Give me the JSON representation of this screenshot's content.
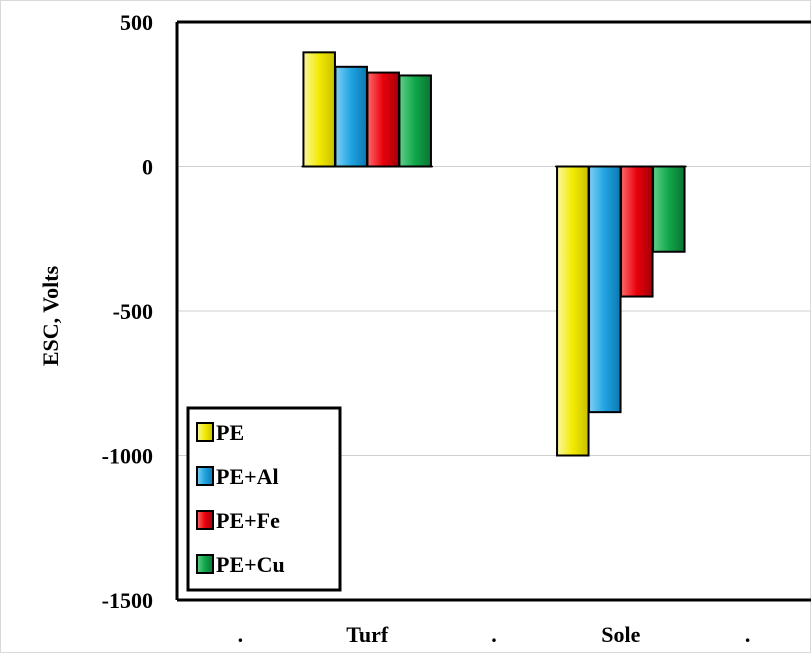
{
  "chart_data": {
    "type": "bar",
    "categories": [
      ".",
      "Turf",
      ".",
      "Sole",
      "."
    ],
    "series": [
      {
        "name": "PE",
        "color": "#f2ea00",
        "values": [
          null,
          395,
          null,
          -1000,
          null
        ]
      },
      {
        "name": "PE+Al",
        "color": "#1fa3e0",
        "values": [
          null,
          345,
          null,
          -850,
          null
        ]
      },
      {
        "name": "PE+Fe",
        "color": "#e8000b",
        "values": [
          null,
          325,
          null,
          -450,
          null
        ]
      },
      {
        "name": "PE+Cu",
        "color": "#11a64a",
        "values": [
          null,
          315,
          null,
          -295,
          null
        ]
      }
    ],
    "ylabel": "ESC, Volts",
    "xlabel": "",
    "ylim": [
      -1500,
      500
    ],
    "yticks": [
      500,
      0,
      -500,
      -1000,
      -1500
    ],
    "grid": true,
    "legend_position": "bottom-left"
  }
}
